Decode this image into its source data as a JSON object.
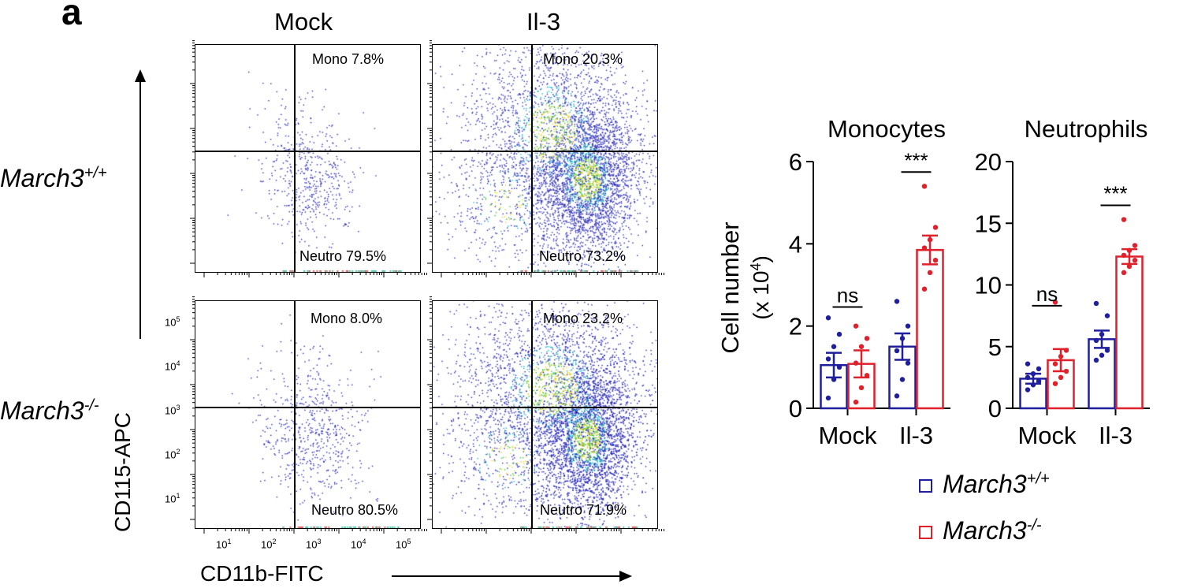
{
  "panel_label": "a",
  "columns": [
    "Mock",
    "Il-3"
  ],
  "rows": [
    {
      "base": "March3",
      "sup": "+/+"
    },
    {
      "base": "March3",
      "sup": "-/-"
    }
  ],
  "flow_plots": [
    {
      "mono": "Mono 7.8%",
      "neutro": "Neutro 79.5%"
    },
    {
      "mono": "Mono 20.3%",
      "neutro": "Neutro 73.2%"
    },
    {
      "mono": "Mono 8.0%",
      "neutro": "Neutro 80.5%"
    },
    {
      "mono": "Mono 23.2%",
      "neutro": "Neutro 71.9%"
    }
  ],
  "flow_axes": {
    "y_title": "CD115-APC",
    "x_title": "CD11b-FITC",
    "tick_base": "10",
    "tick_exponents": [
      "1",
      "2",
      "3",
      "4",
      "5"
    ]
  },
  "chart_data": [
    {
      "type": "bar",
      "title": "Monocytes",
      "ylabel": "Cell number (x 10^4)",
      "ylabel_lines": [
        "Cell number",
        "(x 10",
        "4",
        ")"
      ],
      "categories": [
        "Mock",
        "Il-3"
      ],
      "ylim": [
        0,
        6
      ],
      "yticks": [
        0,
        2,
        4,
        6
      ],
      "series": [
        {
          "name": "March3+/+",
          "color": "#1f1f9e",
          "values": [
            1.05,
            1.5
          ],
          "sem": [
            0.3,
            0.32
          ],
          "points": [
            [
              0.25,
              0.7,
              1.0,
              1.2,
              1.5,
              1.8,
              2.2
            ],
            [
              0.3,
              0.7,
              1.1,
              1.4,
              1.7,
              2.0,
              2.6
            ]
          ]
        },
        {
          "name": "March3-/-",
          "color": "#e0202a",
          "values": [
            1.08,
            3.85
          ],
          "sem": [
            0.33,
            0.35
          ],
          "points": [
            [
              0.15,
              0.5,
              0.8,
              1.1,
              1.5,
              1.7,
              2.0
            ],
            [
              2.9,
              3.3,
              3.6,
              3.9,
              4.1,
              4.4,
              5.4
            ]
          ]
        }
      ],
      "significance": [
        "ns",
        "***"
      ]
    },
    {
      "type": "bar",
      "title": "Neutrophils",
      "categories": [
        "Mock",
        "Il-3"
      ],
      "ylim": [
        0,
        20
      ],
      "yticks": [
        0,
        5,
        10,
        15,
        20
      ],
      "series": [
        {
          "name": "March3+/+",
          "color": "#1f1f9e",
          "values": [
            2.4,
            5.6
          ],
          "sem": [
            0.4,
            0.7
          ],
          "points": [
            [
              1.5,
              1.9,
              2.2,
              2.5,
              2.8,
              3.2,
              3.6
            ],
            [
              3.9,
              4.3,
              4.7,
              5.5,
              6.0,
              7.5,
              8.5
            ]
          ]
        },
        {
          "name": "March3-/-",
          "color": "#e0202a",
          "values": [
            3.9,
            12.3
          ],
          "sem": [
            0.9,
            0.6
          ],
          "points": [
            [
              2.0,
              2.5,
              3.0,
              3.6,
              4.2,
              4.7,
              8.6
            ],
            [
              11.0,
              11.5,
              12.0,
              12.4,
              12.8,
              13.2,
              15.3
            ]
          ]
        }
      ],
      "significance": [
        "ns",
        "***"
      ]
    }
  ],
  "legend": [
    {
      "base": "March3",
      "sup": "+/+",
      "color": "#1f1f9e"
    },
    {
      "base": "March3",
      "sup": "-/-",
      "color": "#e0202a"
    }
  ]
}
